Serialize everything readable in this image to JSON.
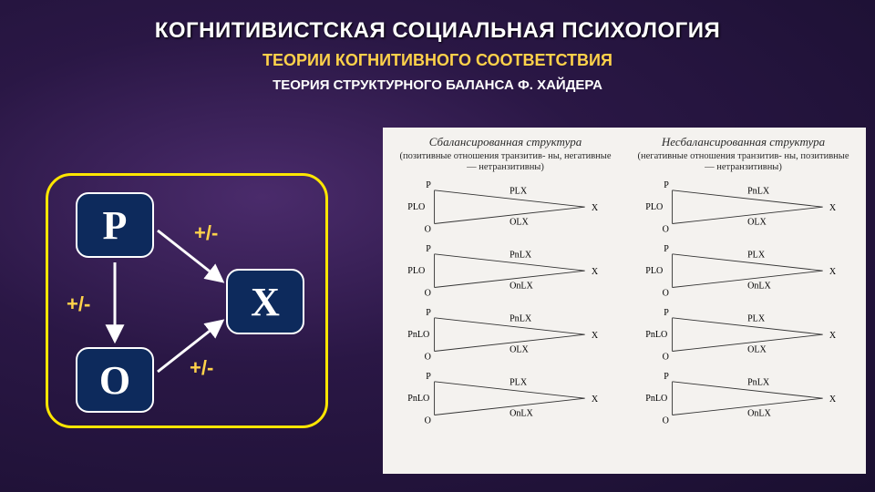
{
  "header": {
    "title1": "КОГНИТИВИСТСКАЯ СОЦИАЛЬНАЯ ПСИХОЛОГИЯ",
    "title2": "ТЕОРИИ КОГНИТИВНОГО СООТВЕТСТВИЯ",
    "title3": "ТЕОРИЯ СТРУКТУРНОГО БАЛАНСА Ф. ХАЙДЕРА"
  },
  "left": {
    "nodes": {
      "P": "Р",
      "O": "О",
      "X": "Х"
    },
    "labels": {
      "po": "+/-",
      "px": "+/-",
      "ox": "+/-"
    },
    "style": {
      "border_color": "#ffe600",
      "node_bg": "#0d2a5c",
      "node_border": "#ffffff",
      "node_text": "#ffffff",
      "label_color": "#ffd24a",
      "arrow_color": "#ffffff"
    }
  },
  "right": {
    "cols": [
      {
        "head": "Сбалансированная структура",
        "sub": "(позитивные отношения транзитив-\nны, негативные — нетранзитивны)"
      },
      {
        "head": "Несбалансированная структура",
        "sub": "(негативные отношения транзитив-\nны, позитивные — нетранзитивны)"
      }
    ],
    "vertex": {
      "P": "P",
      "O": "O",
      "X": "X"
    },
    "rows": [
      {
        "left": {
          "po": "PLO",
          "px": "PLX",
          "ox": "OLX"
        },
        "right": {
          "po": "PLO",
          "px": "PnLX",
          "ox": "OLX"
        }
      },
      {
        "left": {
          "po": "PLO",
          "px": "PnLX",
          "ox": "OnLX"
        },
        "right": {
          "po": "PLO",
          "px": "PLX",
          "ox": "OnLX"
        }
      },
      {
        "left": {
          "po": "PnLO",
          "px": "PnLX",
          "ox": "OLX"
        },
        "right": {
          "po": "PnLO",
          "px": "PLX",
          "ox": "OLX"
        }
      },
      {
        "left": {
          "po": "PnLO",
          "px": "PLX",
          "ox": "OnLX"
        },
        "right": {
          "po": "PnLO",
          "px": "PnLX",
          "ox": "OnLX"
        }
      }
    ],
    "style": {
      "bg": "#f4f2ef",
      "line_color": "#333333",
      "text_color": "#2a2a2a"
    }
  }
}
